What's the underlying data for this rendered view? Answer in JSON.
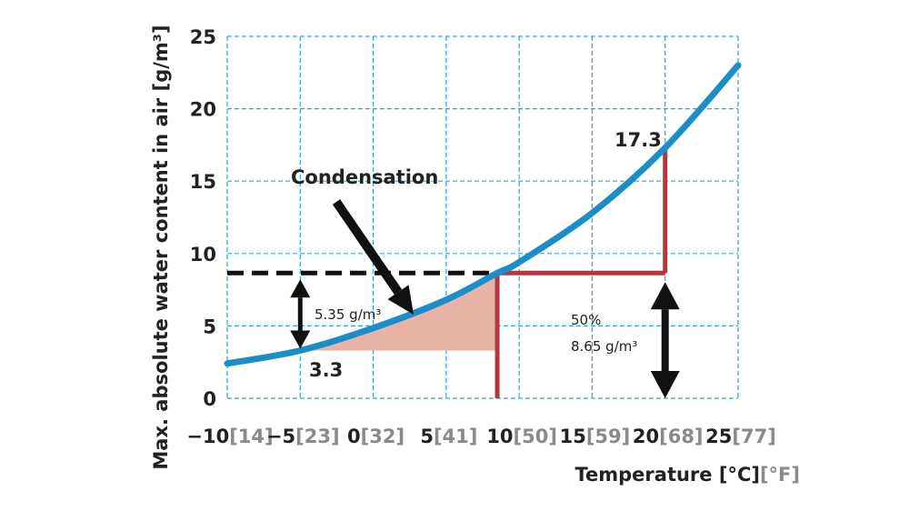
{
  "chart_data": {
    "type": "line",
    "title": "",
    "xlabel": "Temperature [°C]",
    "xlabel_alt": "[°F]",
    "ylabel": "Max. absolute water content in air [g/m³]",
    "xlim": [
      -10,
      25
    ],
    "ylim": [
      0,
      25
    ],
    "grid": true,
    "x_ticks": [
      {
        "c": "-10",
        "f": "[14]"
      },
      {
        "c": "-5",
        "f": "[23]"
      },
      {
        "c": "0",
        "f": "[32]"
      },
      {
        "c": "5",
        "f": "[41]"
      },
      {
        "c": "10",
        "f": "[50]"
      },
      {
        "c": "15",
        "f": "[59]"
      },
      {
        "c": "20",
        "f": "[68]"
      },
      {
        "c": "25",
        "f": "[77]"
      }
    ],
    "y_ticks": [
      "0",
      "5",
      "10",
      "15",
      "20",
      "25"
    ],
    "series": [
      {
        "name": "",
        "color": "#1b8ec8",
        "x": [
          -10,
          -5,
          0,
          5,
          8.5,
          10,
          15,
          20,
          25
        ],
        "y": [
          2.4,
          3.3,
          4.85,
          6.8,
          8.65,
          9.4,
          12.8,
          17.3,
          23.0
        ]
      }
    ],
    "reference_lines": {
      "dew_level": 8.65,
      "dew_point_temp": 8.5,
      "room_temp": 20,
      "saturation_at_room_temp": 17.3,
      "outdoor_temp": -5,
      "saturation_at_outdoor_temp": 3.3,
      "black_color": "#111111",
      "red_color": "#b5373b",
      "fill_color": "#e8b3a6"
    },
    "annotations": {
      "condensation": "Condensation",
      "val_17_3": "17.3",
      "val_3_3": "3.3",
      "diff_label": "5.35 g/m³",
      "rh_label": "50%",
      "abs_label": "8.65 g/m³"
    }
  }
}
